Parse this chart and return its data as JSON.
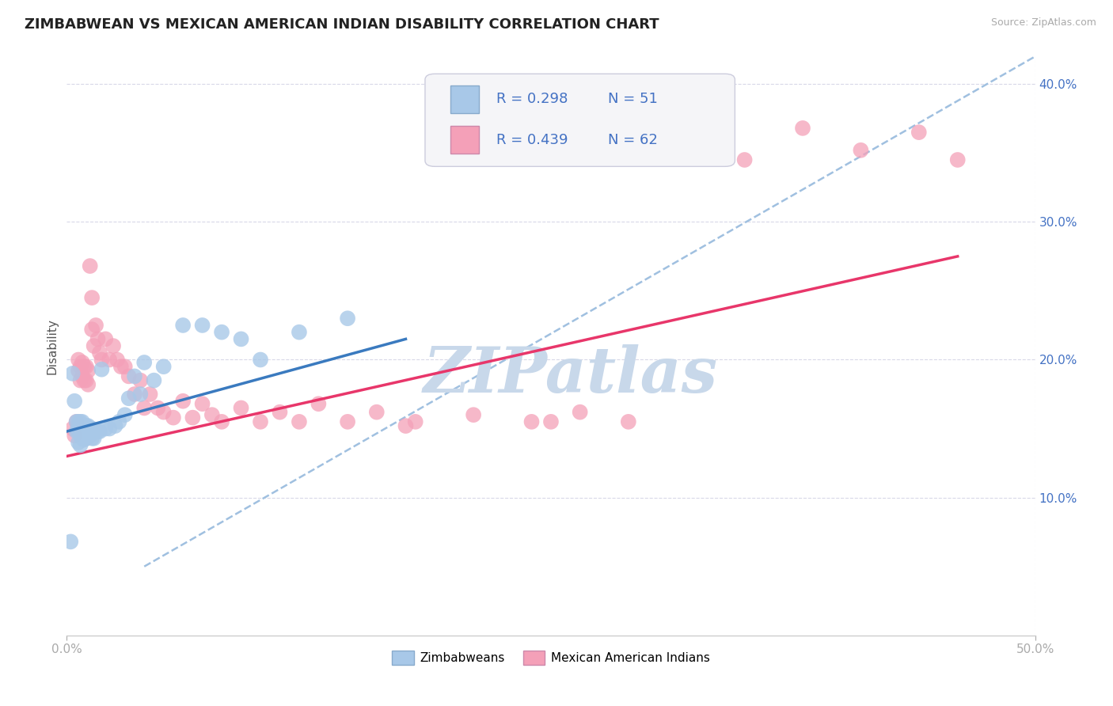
{
  "title": "ZIMBABWEAN VS MEXICAN AMERICAN INDIAN DISABILITY CORRELATION CHART",
  "source_text": "Source: ZipAtlas.com",
  "ylabel": "Disability",
  "xlim": [
    0.0,
    0.5
  ],
  "ylim": [
    0.0,
    0.42
  ],
  "y_ticks": [
    0.1,
    0.2,
    0.3,
    0.4
  ],
  "y_tick_labels": [
    "10.0%",
    "20.0%",
    "30.0%",
    "40.0%"
  ],
  "blue_color": "#a8c8e8",
  "pink_color": "#f4a0b8",
  "blue_line_color": "#3a7abf",
  "pink_line_color": "#e8366a",
  "dashed_line_color": "#a0c0e0",
  "watermark_text": "ZIPatlas",
  "watermark_color": "#c8d8ea",
  "legend_R_blue": "0.298",
  "legend_N_blue": "51",
  "legend_R_pink": "0.439",
  "legend_N_pink": "62",
  "legend_label_blue": "Zimbabweans",
  "legend_label_pink": "Mexican American Indians",
  "legend_text_color": "#4472c4",
  "blue_scatter_x": [
    0.003,
    0.004,
    0.005,
    0.005,
    0.006,
    0.006,
    0.006,
    0.007,
    0.007,
    0.007,
    0.007,
    0.008,
    0.008,
    0.008,
    0.009,
    0.009,
    0.009,
    0.01,
    0.01,
    0.01,
    0.011,
    0.011,
    0.012,
    0.012,
    0.013,
    0.013,
    0.014,
    0.014,
    0.015,
    0.016,
    0.017,
    0.018,
    0.02,
    0.022,
    0.025,
    0.027,
    0.03,
    0.032,
    0.035,
    0.038,
    0.04,
    0.045,
    0.05,
    0.06,
    0.07,
    0.08,
    0.09,
    0.1,
    0.12,
    0.145,
    0.002
  ],
  "blue_scatter_y": [
    0.19,
    0.17,
    0.155,
    0.148,
    0.155,
    0.148,
    0.14,
    0.155,
    0.15,
    0.145,
    0.138,
    0.155,
    0.15,
    0.143,
    0.152,
    0.147,
    0.142,
    0.152,
    0.148,
    0.143,
    0.152,
    0.147,
    0.15,
    0.145,
    0.15,
    0.143,
    0.148,
    0.143,
    0.148,
    0.148,
    0.148,
    0.193,
    0.15,
    0.15,
    0.152,
    0.155,
    0.16,
    0.172,
    0.188,
    0.175,
    0.198,
    0.185,
    0.195,
    0.225,
    0.225,
    0.22,
    0.215,
    0.2,
    0.22,
    0.23,
    0.068
  ],
  "pink_scatter_x": [
    0.003,
    0.004,
    0.005,
    0.006,
    0.006,
    0.007,
    0.007,
    0.008,
    0.008,
    0.009,
    0.009,
    0.01,
    0.01,
    0.011,
    0.011,
    0.012,
    0.013,
    0.013,
    0.014,
    0.015,
    0.016,
    0.017,
    0.018,
    0.02,
    0.022,
    0.024,
    0.026,
    0.028,
    0.03,
    0.032,
    0.035,
    0.038,
    0.04,
    0.043,
    0.047,
    0.05,
    0.055,
    0.06,
    0.065,
    0.07,
    0.075,
    0.08,
    0.09,
    0.1,
    0.11,
    0.12,
    0.13,
    0.145,
    0.16,
    0.18,
    0.21,
    0.24,
    0.265,
    0.29,
    0.32,
    0.35,
    0.38,
    0.41,
    0.44,
    0.46,
    0.175,
    0.25
  ],
  "pink_scatter_y": [
    0.15,
    0.145,
    0.155,
    0.2,
    0.192,
    0.195,
    0.185,
    0.198,
    0.188,
    0.195,
    0.185,
    0.195,
    0.185,
    0.192,
    0.182,
    0.268,
    0.245,
    0.222,
    0.21,
    0.225,
    0.215,
    0.205,
    0.2,
    0.215,
    0.2,
    0.21,
    0.2,
    0.195,
    0.195,
    0.188,
    0.175,
    0.185,
    0.165,
    0.175,
    0.165,
    0.162,
    0.158,
    0.17,
    0.158,
    0.168,
    0.16,
    0.155,
    0.165,
    0.155,
    0.162,
    0.155,
    0.168,
    0.155,
    0.162,
    0.155,
    0.16,
    0.155,
    0.162,
    0.155,
    0.365,
    0.345,
    0.368,
    0.352,
    0.365,
    0.345,
    0.152,
    0.155
  ],
  "blue_line_x": [
    0.0,
    0.175
  ],
  "blue_line_y": [
    0.148,
    0.215
  ],
  "pink_line_x": [
    0.0,
    0.46
  ],
  "pink_line_y": [
    0.13,
    0.275
  ],
  "diag_line_x": [
    0.04,
    0.5
  ],
  "diag_line_y": [
    0.05,
    0.42
  ],
  "background_color": "#ffffff",
  "grid_color": "#d8d8e8",
  "title_fontsize": 13,
  "tick_label_color": "#4472c4"
}
